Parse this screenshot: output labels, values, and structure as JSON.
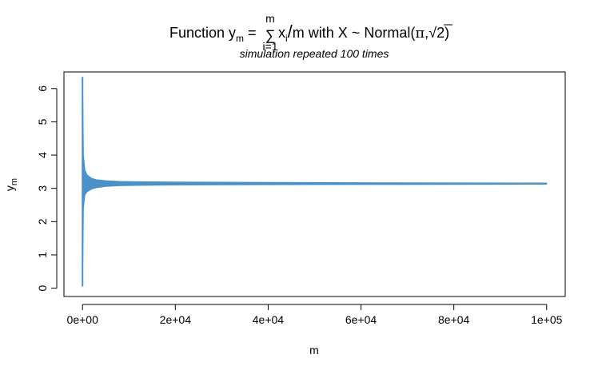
{
  "chart_data": {
    "type": "line",
    "title": {
      "prefix": "Function y",
      "prefix_sub": "m",
      "eq": " = ",
      "sum_sym": "∑",
      "sum_top": "m",
      "sum_bottom": "i=1",
      "term": "x",
      "term_sub": "i",
      "slash": "/",
      "middle": "m with X ~ Normal(",
      "pi": "π",
      "comma": ",",
      "sqrt_sym": "√",
      "sqrt_arg": "2",
      "close": ")"
    },
    "subtitle": "simulation repeated 100 times",
    "xlabel": "m",
    "ylabel": "y",
    "ylabel_sub": "m",
    "xlim": [
      -4000,
      104000
    ],
    "ylim": [
      -0.25,
      6.5
    ],
    "xticks": [
      0,
      20000,
      40000,
      60000,
      80000,
      100000
    ],
    "xtick_labels": [
      "0e+00",
      "2e+04",
      "4e+04",
      "6e+04",
      "8e+04",
      "1e+05"
    ],
    "yticks": [
      0,
      1,
      2,
      3,
      4,
      5,
      6
    ],
    "ytick_labels": [
      "0",
      "1",
      "2",
      "3",
      "4",
      "5",
      "6"
    ],
    "series_color": "#4A90C9",
    "mean_value": 3.14159,
    "band": {
      "x": [
        0,
        200,
        500,
        1000,
        2000,
        3000,
        5000,
        8000,
        12000,
        20000,
        40000,
        60000,
        80000,
        100000
      ],
      "upper": [
        6.35,
        4.0,
        3.55,
        3.4,
        3.3,
        3.26,
        3.23,
        3.21,
        3.2,
        3.19,
        3.18,
        3.17,
        3.165,
        3.16
      ],
      "lower": [
        0.05,
        2.4,
        2.8,
        2.9,
        2.98,
        3.02,
        3.06,
        3.08,
        3.09,
        3.1,
        3.11,
        3.115,
        3.12,
        3.125
      ]
    }
  }
}
